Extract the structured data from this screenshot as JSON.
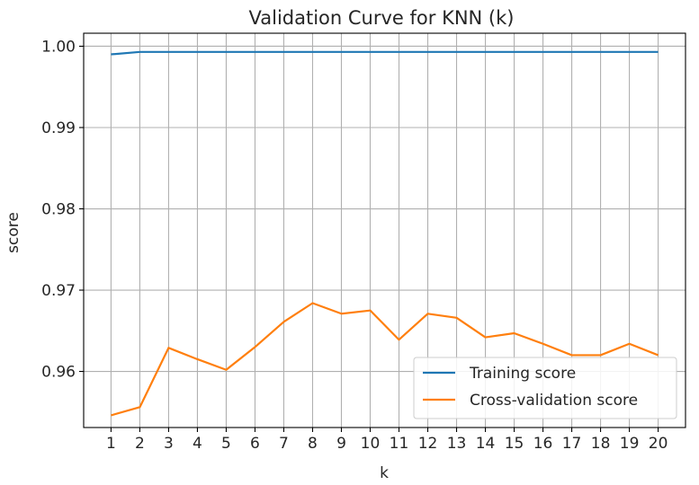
{
  "chart_data": {
    "type": "line",
    "title": "Validation Curve for KNN (k)",
    "xlabel": "k",
    "ylabel": "score",
    "x": [
      1,
      2,
      3,
      4,
      5,
      6,
      7,
      8,
      9,
      10,
      11,
      12,
      13,
      14,
      15,
      16,
      17,
      18,
      19,
      20
    ],
    "x_ticks": [
      "1",
      "2",
      "3",
      "4",
      "5",
      "6",
      "7",
      "8",
      "9",
      "10",
      "11",
      "12",
      "13",
      "14",
      "15",
      "16",
      "17",
      "18",
      "19",
      "20"
    ],
    "y_ticks": [
      "0.96",
      "0.97",
      "0.98",
      "0.99",
      "1.00"
    ],
    "xlim": [
      0.05,
      20.95
    ],
    "ylim": [
      0.9531,
      1.0016
    ],
    "grid": true,
    "legend_position": "lower-right",
    "series": [
      {
        "name": "Training score",
        "color": "#1f77b4",
        "values": [
          0.999,
          0.9993,
          0.9993,
          0.9993,
          0.9993,
          0.9993,
          0.9993,
          0.9993,
          0.9993,
          0.9993,
          0.9993,
          0.9993,
          0.9993,
          0.9993,
          0.9993,
          0.9993,
          0.9993,
          0.9993,
          0.9993,
          0.9993
        ]
      },
      {
        "name": "Cross-validation score",
        "color": "#ff7f0e",
        "values": [
          0.9546,
          0.9556,
          0.9629,
          0.9615,
          0.9602,
          0.963,
          0.9661,
          0.9684,
          0.9671,
          0.9675,
          0.9639,
          0.9671,
          0.9666,
          0.9642,
          0.9647,
          0.9634,
          0.962,
          0.962,
          0.9634,
          0.962
        ]
      }
    ]
  }
}
